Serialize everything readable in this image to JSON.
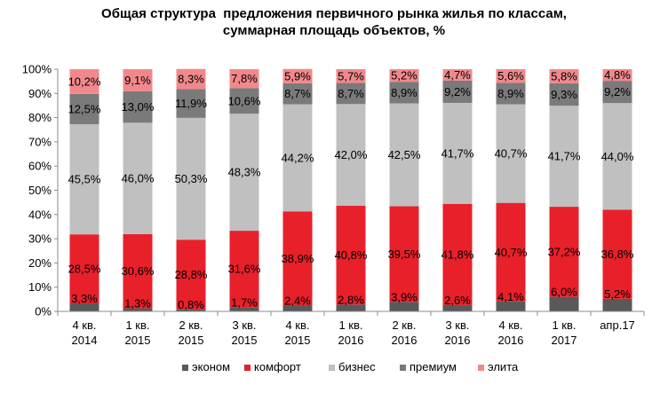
{
  "chart_data": {
    "type": "bar",
    "stacked": true,
    "title_lines": [
      "Общая структура  предложения первичного рынка жилья по классам,",
      "суммарная площадь объектов, %"
    ],
    "categories": [
      [
        "4 кв.",
        "2014"
      ],
      [
        "1 кв.",
        "2015"
      ],
      [
        "2 кв.",
        "2015"
      ],
      [
        "3 кв.",
        "2015"
      ],
      [
        "4 кв.",
        "2015"
      ],
      [
        "1 кв.",
        "2016"
      ],
      [
        "2 кв.",
        "2016"
      ],
      [
        "3 кв.",
        "2016"
      ],
      [
        "4 кв.",
        "2016"
      ],
      [
        "1 кв.",
        "2017"
      ],
      [
        "апр.17"
      ]
    ],
    "ylim": [
      0,
      100
    ],
    "yticks": [
      "0%",
      "10%",
      "20%",
      "30%",
      "40%",
      "50%",
      "60%",
      "70%",
      "80%",
      "90%",
      "100%"
    ],
    "grid": false,
    "legend_position": "bottom",
    "series": [
      {
        "name": "эконом",
        "color": "#595959",
        "values": [
          3.3,
          1.3,
          0.8,
          1.7,
          2.4,
          2.8,
          3.9,
          2.6,
          4.1,
          6.0,
          5.2
        ],
        "labels": [
          "3,3%",
          "1,3%",
          "0,8%",
          "1,7%",
          "2,4%",
          "2,8%",
          "3,9%",
          "2,6%",
          "4,1%",
          "6,0%",
          "5,2%"
        ]
      },
      {
        "name": "комфорт",
        "color": "#e8202a",
        "values": [
          28.5,
          30.6,
          28.8,
          31.6,
          38.9,
          40.8,
          39.5,
          41.8,
          40.7,
          37.2,
          36.8
        ],
        "labels": [
          "28,5%",
          "30,6%",
          "28,8%",
          "31,6%",
          "38,9%",
          "40,8%",
          "39,5%",
          "41,8%",
          "40,7%",
          "37,2%",
          "36,8%"
        ]
      },
      {
        "name": "бизнес",
        "color": "#c0c0c0",
        "values": [
          45.5,
          46.0,
          50.3,
          48.3,
          44.2,
          42.0,
          42.5,
          41.7,
          40.7,
          41.7,
          44.0
        ],
        "labels": [
          "45,5%",
          "46,0%",
          "50,3%",
          "48,3%",
          "44,2%",
          "42,0%",
          "42,5%",
          "41,7%",
          "40,7%",
          "41,7%",
          "44,0%"
        ]
      },
      {
        "name": "премиум",
        "color": "#7a7a7a",
        "values": [
          12.5,
          13.0,
          11.9,
          10.6,
          8.7,
          8.7,
          8.9,
          9.2,
          8.9,
          9.3,
          9.2
        ],
        "labels": [
          "12,5%",
          "13,0%",
          "11,9%",
          "10,6%",
          "8,7%",
          "8,7%",
          "8,9%",
          "9,2%",
          "8,9%",
          "9,3%",
          "9,2%"
        ]
      },
      {
        "name": "элита",
        "color": "#f2888b",
        "values": [
          10.2,
          9.1,
          8.3,
          7.8,
          5.9,
          5.7,
          5.2,
          4.7,
          5.6,
          5.8,
          4.8
        ],
        "labels": [
          "10,2%",
          "9,1%",
          "8,3%",
          "7,8%",
          "5,9%",
          "5,7%",
          "5,2%",
          "4,7%",
          "5,6%",
          "5,8%",
          "4,8%"
        ]
      }
    ]
  }
}
